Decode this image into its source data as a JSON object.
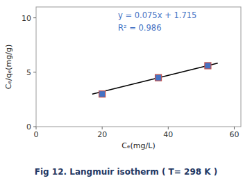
{
  "chart_data": {
    "type": "scatter",
    "title": "Fig 12. Langmuir isotherm ( T= 298 K )",
    "x_label": "Cₑ(mg/L)",
    "y_label": "Cₑ/qₑ(mg/g)",
    "series": [
      {
        "type": "scatter",
        "marker": "square",
        "color": "#4472C4",
        "x": [
          20,
          37,
          52
        ],
        "values": [
          3.0,
          4.5,
          5.6
        ]
      },
      {
        "type": "line",
        "line_style": "solid",
        "color": "black",
        "x": [
          17,
          55
        ],
        "values": [
          2.99,
          5.84
        ]
      }
    ],
    "annotations": [
      "y = 0.075x + 1.715",
      "R² = 0.986"
    ],
    "xlim": [
      0,
      62
    ],
    "ylim": [
      0,
      11
    ],
    "xticks": [
      0,
      20,
      40,
      60
    ],
    "yticks": [
      0,
      5,
      10
    ],
    "grid": false
  }
}
